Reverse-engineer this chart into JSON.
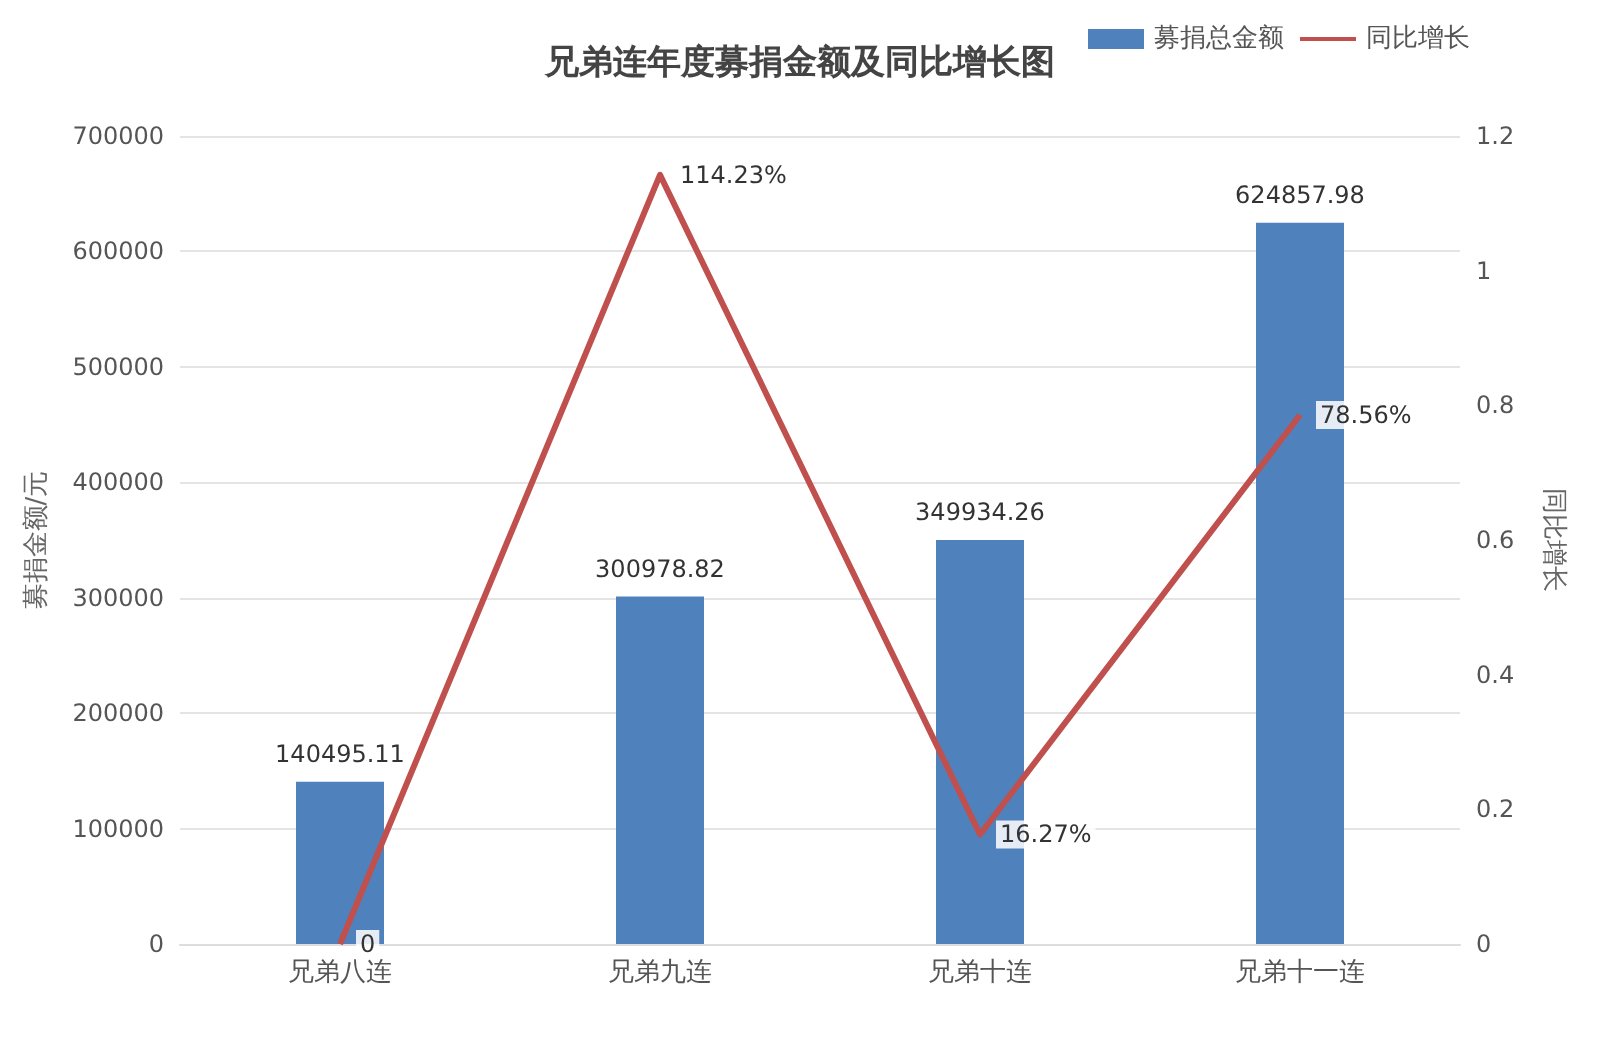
{
  "chart_data": {
    "type": "bar",
    "title": "兄弟连年度募捐金额及同比增长图",
    "ylabel": "募捐金额/元",
    "y2label": "同比增长",
    "categories": [
      "兄弟八连",
      "兄弟九连",
      "兄弟十连",
      "兄弟十一连"
    ],
    "series": [
      {
        "name": "募捐总金额",
        "color": "#4f81bd",
        "values": [
          140495.11,
          300978.82,
          349934.26,
          624857.98
        ],
        "value_labels": [
          "140495.11",
          "300978.82",
          "349934.26",
          "624857.98"
        ]
      },
      {
        "name": "同比增长",
        "type": "line",
        "axis": "y2",
        "color": "#c0504d",
        "marker": "none",
        "values": [
          0,
          1.1423,
          0.1627,
          0.7856
        ],
        "value_labels": [
          "0",
          "114.23%",
          "16.27%",
          "78.56%"
        ]
      }
    ],
    "ylim": [
      0,
      700000
    ],
    "yticks": [
      0,
      100000,
      200000,
      300000,
      400000,
      500000,
      600000,
      700000
    ],
    "y2lim": [
      0,
      1.2
    ],
    "y2ticks": [
      0,
      0.2,
      0.4,
      0.6,
      0.8,
      1,
      1.2
    ],
    "grid": "y",
    "legend": "top right"
  }
}
